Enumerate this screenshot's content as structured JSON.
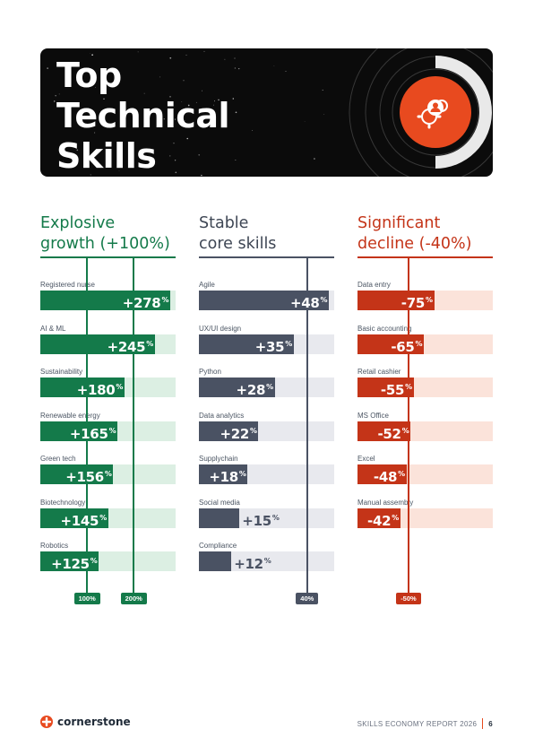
{
  "header": {
    "title_lines": [
      "Top",
      "Technical",
      "Skills"
    ]
  },
  "colors": {
    "green": "#147a4a",
    "green_light": "#dcefe3",
    "slate": "#4a5263",
    "slate_light": "#e8e9ee",
    "red": "#c43418",
    "red_light": "#fbe3da",
    "accent": "#e84a1f"
  },
  "chart_data": [
    {
      "type": "bar",
      "orientation": "horizontal",
      "title_line1": "Explosive",
      "title_line2": "growth (+100%)",
      "categories": [
        "Registered nurse",
        "AI & ML",
        "Sustainability",
        "Renewable energy",
        "Green tech",
        "Biotechnology",
        "Robotics"
      ],
      "values": [
        278,
        245,
        180,
        165,
        156,
        145,
        125
      ],
      "value_labels": [
        "+278%",
        "+245%",
        "+180%",
        "+165%",
        "+156%",
        "+145%",
        "+125%"
      ],
      "xlim": [
        0,
        290
      ],
      "reference_lines": [
        {
          "value": 100,
          "label": "100%"
        },
        {
          "value": 200,
          "label": "200%"
        }
      ]
    },
    {
      "type": "bar",
      "orientation": "horizontal",
      "title_line1": "Stable",
      "title_line2": "core skills",
      "categories": [
        "Agile",
        "UX/UI design",
        "Python",
        "Data analytics",
        "Supplychain",
        "Social media",
        "Compliance"
      ],
      "values": [
        48,
        35,
        28,
        22,
        18,
        15,
        12
      ],
      "value_labels": [
        "+48%",
        "+35%",
        "+28%",
        "+22%",
        "+18%",
        "+15%",
        "+12%"
      ],
      "xlim": [
        0,
        50
      ],
      "reference_lines": [
        {
          "value": 40,
          "label": "40%"
        }
      ]
    },
    {
      "type": "bar",
      "orientation": "horizontal",
      "title_line1": "Significant",
      "title_line2": "decline (-40%)",
      "categories": [
        "Data entry",
        "Basic accounting",
        "Retail cashier",
        "MS Office",
        "Excel",
        "Manual assembly"
      ],
      "values": [
        -75,
        -65,
        -55,
        -52,
        -48,
        -42
      ],
      "value_labels": [
        "-75%",
        "-65%",
        "-55%",
        "-52%",
        "-48%",
        "-42%"
      ],
      "xlim": [
        0,
        -132
      ],
      "reference_lines": [
        {
          "value": -50,
          "label": "-50%"
        }
      ]
    }
  ],
  "footer": {
    "brand": "cornerstone",
    "report": "SKILLS ECONOMY REPORT 2026",
    "page": "6"
  }
}
